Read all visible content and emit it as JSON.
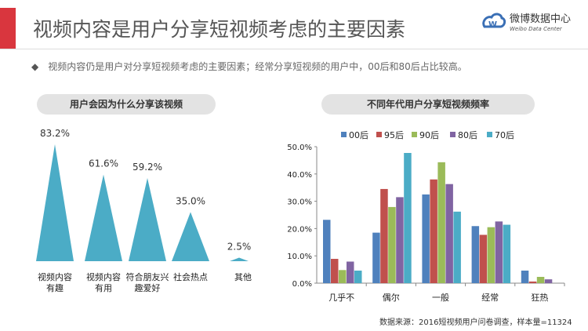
{
  "header": {
    "title": "视频内容是用户分享短视频考虑的主要因素",
    "logo_text": "微博数据中心",
    "logo_sub": "Weibo Data Center"
  },
  "summary": {
    "bullet": "◆",
    "text": "视频内容仍是用户对分享短视频考虑的主要因素；经常分享短视频的用户中，00后和80后占比较高。"
  },
  "source": "数据来源：2016短视频用户问卷调查，样本量=11324",
  "chart_data": [
    {
      "type": "bar",
      "title": "用户会因为什么分享该视频",
      "style": "triangle",
      "color": "#4bacc6",
      "categories": [
        [
          "视频内容",
          "有趣"
        ],
        [
          "视频内容",
          "有用"
        ],
        [
          "符合朋友兴",
          "趣爱好"
        ],
        [
          "社会热点"
        ],
        [
          "其他"
        ]
      ],
      "values": [
        83.2,
        61.6,
        59.2,
        35.0,
        2.5
      ],
      "labels": [
        "83.2%",
        "61.6%",
        "59.2%",
        "35.0%",
        "2.5%"
      ],
      "ylim": [
        0,
        100
      ]
    },
    {
      "type": "bar",
      "title": "不同年代用户分享短视频频率",
      "categories": [
        "几乎不",
        "偶尔",
        "一般",
        "经常",
        "狂热"
      ],
      "ylim": [
        0,
        50
      ],
      "yticks": [
        "0.0%",
        "10.0%",
        "20.0%",
        "30.0%",
        "40.0%",
        "50.0%"
      ],
      "legend": "top",
      "series": [
        {
          "name": "00后",
          "color": "#4f81bd",
          "values": [
            23.2,
            18.5,
            32.5,
            20.9,
            4.6
          ]
        },
        {
          "name": "95后",
          "color": "#c0504d",
          "values": [
            8.9,
            34.5,
            38.0,
            17.7,
            0.6
          ]
        },
        {
          "name": "90后",
          "color": "#9bbb59",
          "values": [
            4.8,
            27.9,
            44.3,
            20.5,
            2.3
          ]
        },
        {
          "name": "80后",
          "color": "#8064a2",
          "values": [
            7.9,
            31.5,
            36.3,
            22.6,
            1.4
          ]
        },
        {
          "name": "70后",
          "color": "#4bacc6",
          "values": [
            4.6,
            47.7,
            26.2,
            21.4,
            0
          ]
        }
      ]
    }
  ]
}
